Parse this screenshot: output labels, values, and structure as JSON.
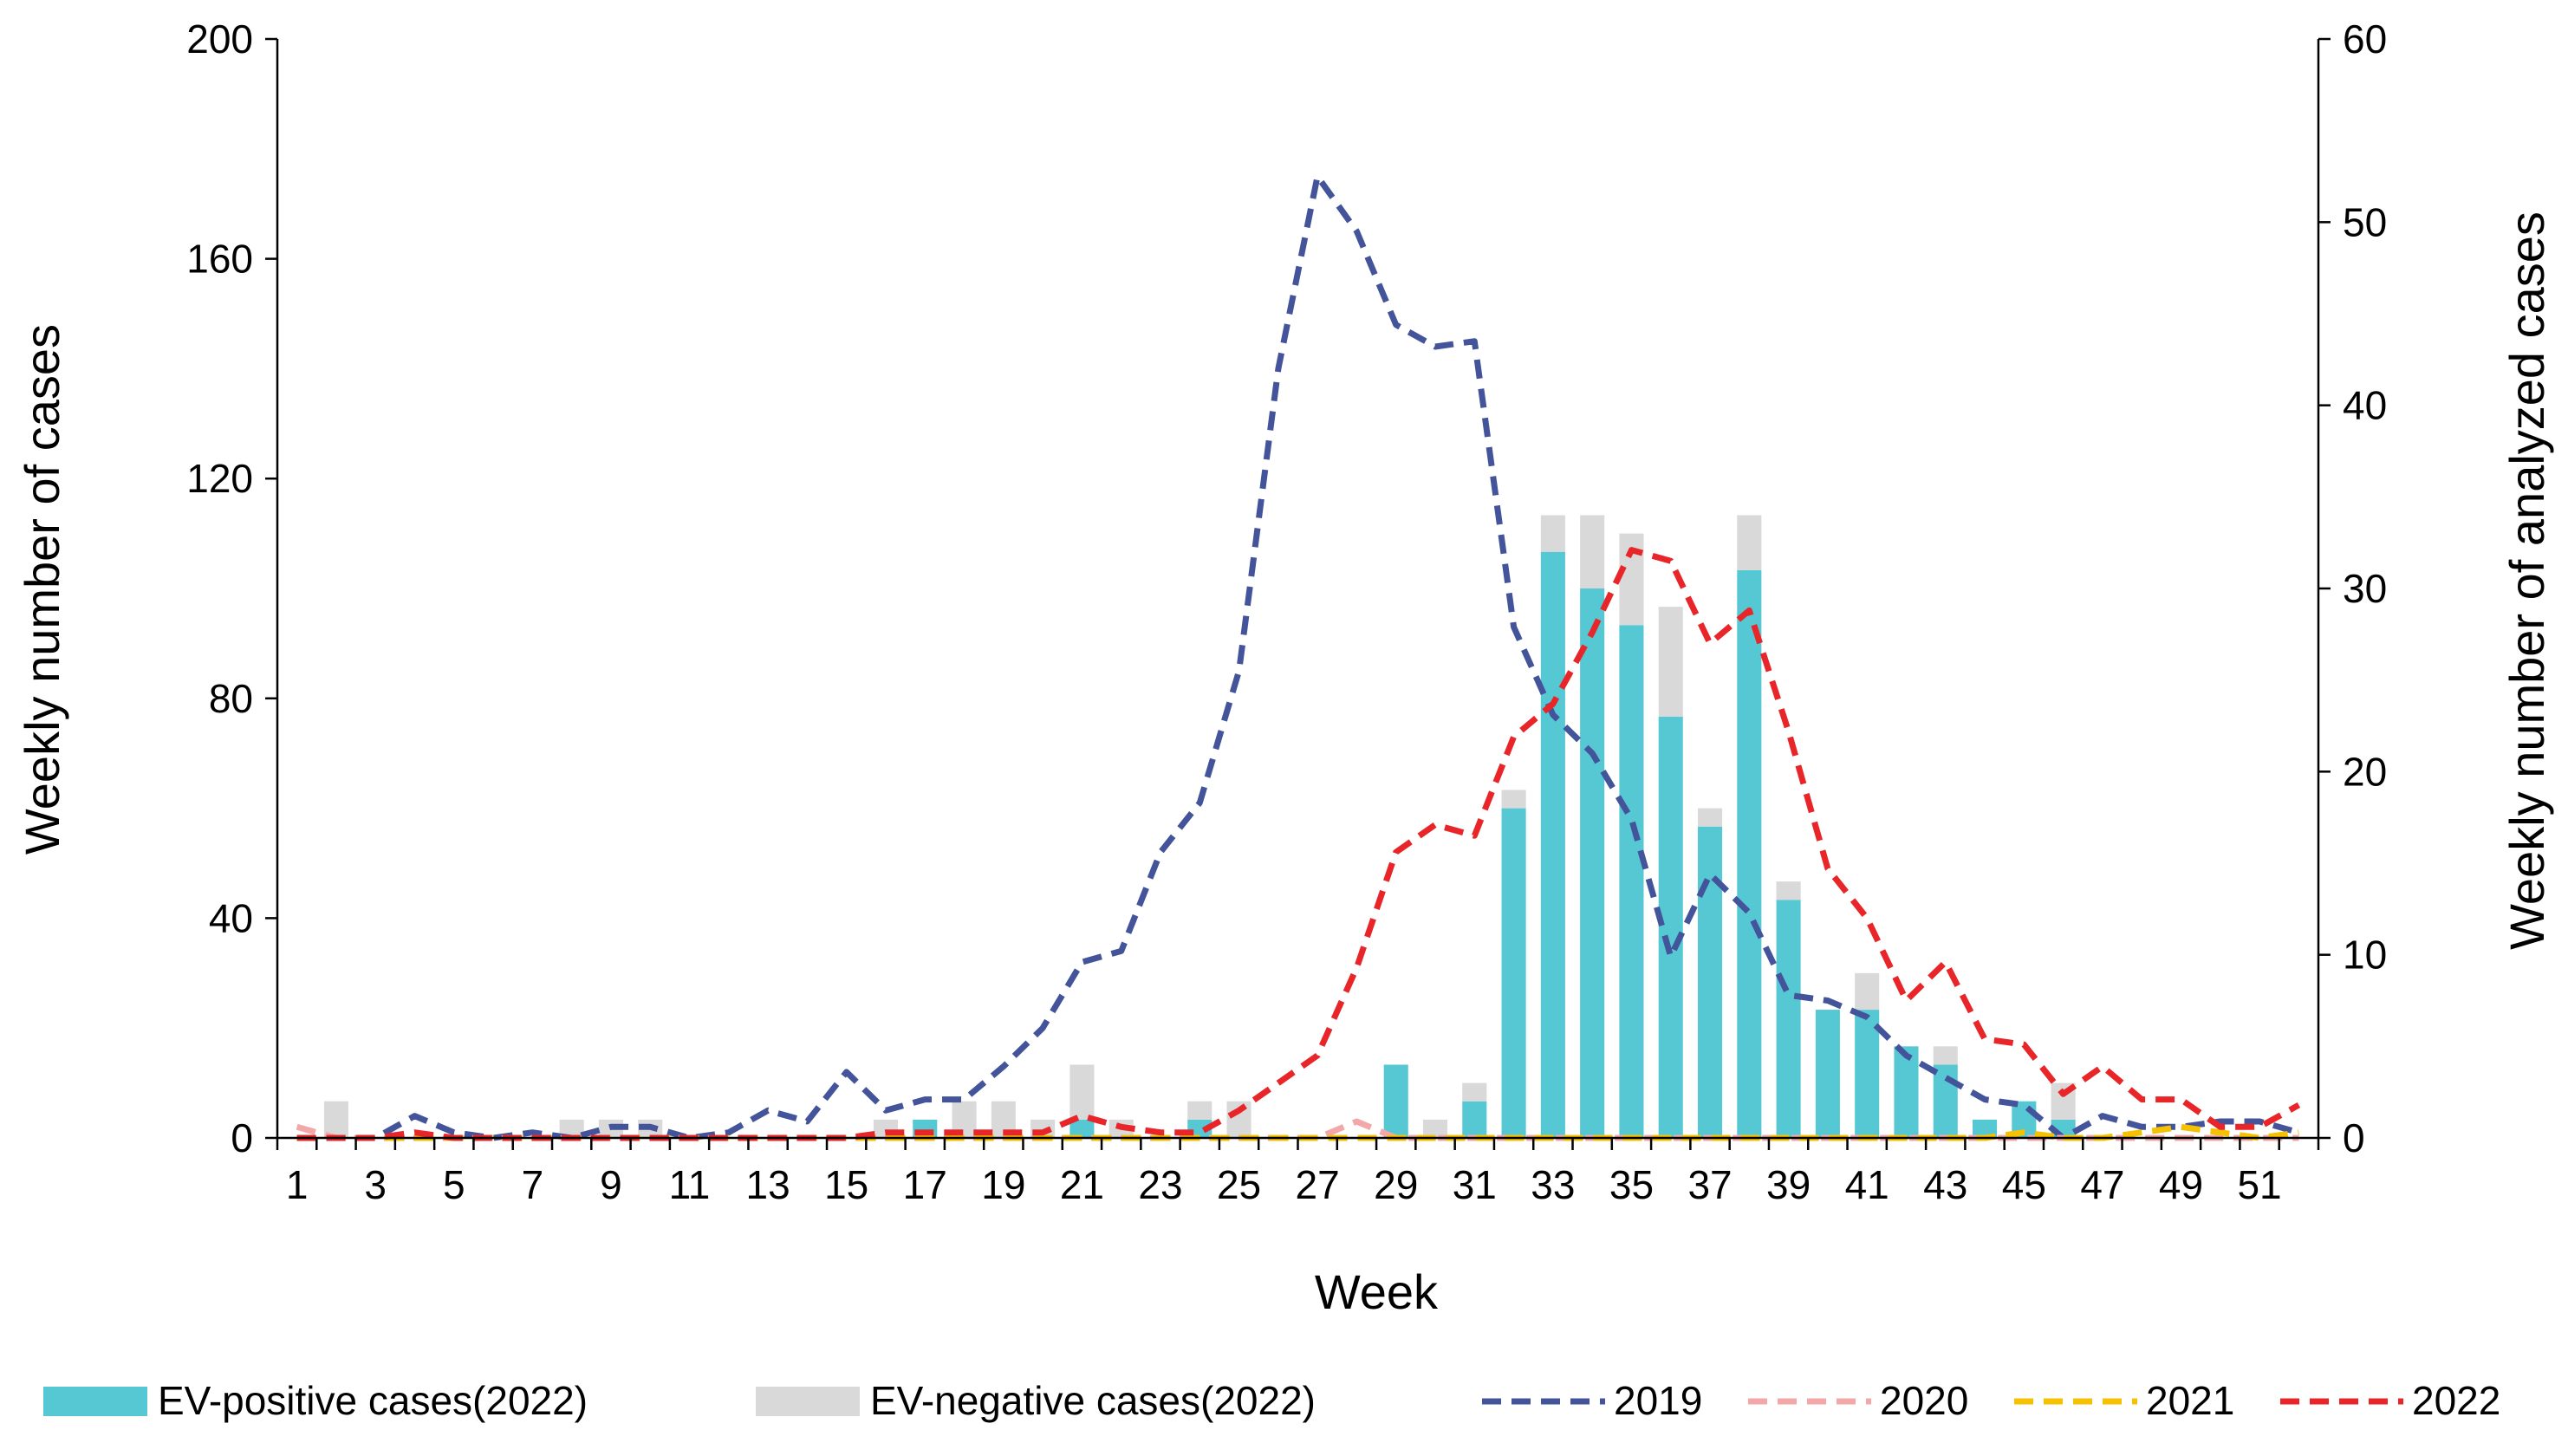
{
  "chart_data": {
    "type": "bar",
    "title": "",
    "xlabel": "Week",
    "ylabel_left": "Weekly number of cases",
    "ylabel_right": "Weekly number of analyzed cases",
    "ylim_left": [
      0,
      200
    ],
    "ylim_right": [
      0,
      60
    ],
    "y_ticks_left": [
      0,
      40,
      80,
      120,
      160,
      200
    ],
    "y_ticks_right": [
      0,
      10,
      20,
      30,
      40,
      50,
      60
    ],
    "x": [
      1,
      2,
      3,
      4,
      5,
      6,
      7,
      8,
      9,
      10,
      11,
      12,
      13,
      14,
      15,
      16,
      17,
      18,
      19,
      20,
      21,
      22,
      23,
      24,
      25,
      26,
      27,
      28,
      29,
      30,
      31,
      32,
      33,
      34,
      35,
      36,
      37,
      38,
      39,
      40,
      41,
      42,
      43,
      44,
      45,
      46,
      47,
      48,
      49,
      50,
      51,
      52
    ],
    "x_tick_labels": [
      "1",
      "3",
      "5",
      "7",
      "9",
      "11",
      "13",
      "15",
      "17",
      "19",
      "21",
      "23",
      "25",
      "27",
      "29",
      "31",
      "33",
      "35",
      "37",
      "39",
      "41",
      "43",
      "45",
      "47",
      "49",
      "51"
    ],
    "bars": {
      "axis": "right",
      "stacked": true,
      "series": [
        {
          "name": "EV-positive cases(2022)",
          "color": "#56C8D4",
          "values": [
            0,
            0,
            0,
            0,
            0,
            0,
            0,
            0,
            0,
            0,
            0,
            0,
            0,
            0,
            0,
            0,
            1,
            0,
            0,
            0,
            1,
            0,
            0,
            1,
            0,
            0,
            0,
            0,
            4,
            0,
            2,
            18,
            32,
            30,
            28,
            23,
            17,
            31,
            13,
            7,
            7,
            5,
            4,
            1,
            2,
            1,
            0,
            0,
            0,
            0,
            0,
            0
          ]
        },
        {
          "name": "EV-negative cases(2022)",
          "color": "#D9D9D9",
          "values": [
            0,
            2,
            0,
            0,
            0,
            0,
            0,
            1,
            1,
            1,
            0,
            0,
            0,
            0,
            0,
            1,
            0,
            2,
            2,
            1,
            3,
            1,
            0,
            1,
            2,
            0,
            0,
            0,
            0,
            1,
            1,
            1,
            2,
            4,
            5,
            6,
            1,
            3,
            1,
            0,
            2,
            0,
            1,
            0,
            0,
            2,
            0,
            0,
            0,
            0,
            0,
            0
          ]
        }
      ]
    },
    "lines": {
      "axis": "left",
      "style": "dashed",
      "series": [
        {
          "name": "2019",
          "color": "#44549A",
          "values": [
            0,
            0,
            0,
            4,
            1,
            0,
            1,
            0,
            2,
            2,
            0,
            1,
            5,
            3,
            12,
            5,
            7,
            7,
            13,
            20,
            32,
            34,
            52,
            61,
            85,
            140,
            175,
            165,
            148,
            144,
            145,
            93,
            77,
            70,
            58,
            33,
            48,
            41,
            26,
            25,
            22,
            15,
            11,
            7,
            6,
            0,
            4,
            2,
            2,
            3,
            3,
            1
          ]
        },
        {
          "name": "2020",
          "color": "#F4A7A8",
          "values": [
            2,
            0,
            0,
            0,
            0,
            0,
            0,
            0,
            0,
            0,
            0,
            0,
            0,
            0,
            0,
            0,
            0,
            0,
            0,
            0,
            0,
            0,
            0,
            0,
            0,
            0,
            0,
            3,
            0,
            0,
            0,
            0,
            0,
            0,
            0,
            0,
            0,
            0,
            0,
            0,
            0,
            0,
            0,
            0,
            0,
            0,
            0,
            0,
            0,
            0,
            0,
            0
          ]
        },
        {
          "name": "2021",
          "color": "#F6C100",
          "values": [
            0,
            0,
            0,
            0,
            0,
            0,
            0,
            0,
            0,
            0,
            0,
            0,
            0,
            0,
            0,
            0,
            0,
            0,
            0,
            0,
            0,
            0,
            0,
            0,
            0,
            0,
            0,
            0,
            0,
            0,
            0,
            0,
            0,
            0,
            0,
            0,
            0,
            0,
            0,
            0,
            0,
            0,
            0,
            0,
            1,
            0,
            0,
            1,
            2,
            1,
            0,
            1
          ]
        },
        {
          "name": "2022",
          "color": "#E8262A",
          "values": [
            0,
            0,
            0,
            1,
            0,
            0,
            0,
            0,
            0,
            0,
            0,
            0,
            0,
            0,
            0,
            1,
            1,
            1,
            1,
            1,
            4,
            2,
            1,
            1,
            5,
            10,
            15,
            31,
            52,
            57,
            55,
            73,
            79,
            92,
            107,
            105,
            90,
            96,
            74,
            49,
            40,
            25,
            32,
            18,
            17,
            8,
            13,
            7,
            7,
            2,
            2,
            6
          ]
        }
      ]
    },
    "legend_position": "bottom"
  }
}
